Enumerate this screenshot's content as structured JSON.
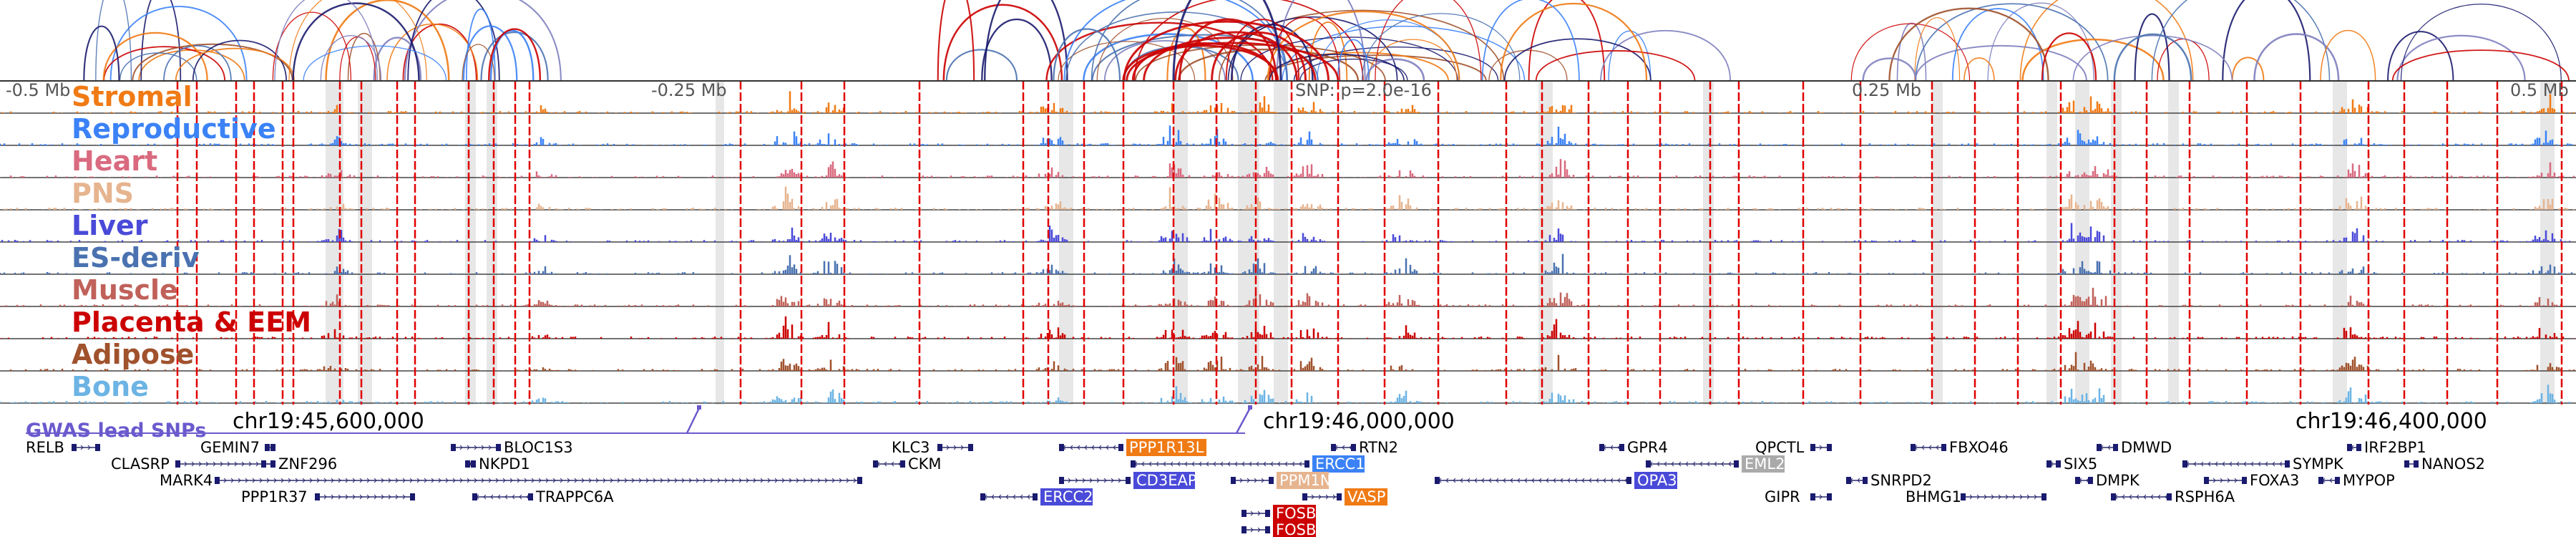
{
  "scale": {
    "left": "-0.5 Mb",
    "mid_left": "-0.25 Mb",
    "center": "SNP: p=2.0e-16",
    "mid_right": "0.25 Mb",
    "right": "0.5 Mb"
  },
  "tracks": [
    {
      "name": "Stromal",
      "color": "#f07a14"
    },
    {
      "name": "Reproductive",
      "color": "#3b82f6"
    },
    {
      "name": "Heart",
      "color": "#d96a7f"
    },
    {
      "name": "PNS",
      "color": "#e6b48f"
    },
    {
      "name": "Liver",
      "color": "#4a4ad9"
    },
    {
      "name": "ES-deriv",
      "color": "#4a72b0"
    },
    {
      "name": "Muscle",
      "color": "#c0615a"
    },
    {
      "name": "Placenta & EEM",
      "color": "#cc0000"
    },
    {
      "name": "Adipose",
      "color": "#a0522d"
    },
    {
      "name": "Bone",
      "color": "#6cb4e4"
    }
  ],
  "coords": [
    "chr19:45,600,000",
    "chr19:46,000,000",
    "chr19:46,400,000"
  ],
  "gwas_label": "GWAS lead SNPs",
  "genes": [
    {
      "name": "RELB",
      "strand": "+"
    },
    {
      "name": "CLASRP",
      "strand": "+"
    },
    {
      "name": "GEMIN7",
      "strand": "+"
    },
    {
      "name": "ZNF296",
      "strand": "+"
    },
    {
      "name": "MARK4",
      "strand": "+"
    },
    {
      "name": "PPP1R37",
      "strand": "+"
    },
    {
      "name": "BLOC1S3",
      "strand": "+"
    },
    {
      "name": "NKPD1",
      "strand": "-"
    },
    {
      "name": "TRAPPC6A",
      "strand": "-"
    },
    {
      "name": "KLC3",
      "strand": "+"
    },
    {
      "name": "CKM",
      "strand": "-"
    },
    {
      "name": "PPP1R13L",
      "strand": "-"
    },
    {
      "name": "ERCC1",
      "strand": "-"
    },
    {
      "name": "CD3EAP",
      "strand": "+"
    },
    {
      "name": "ERCC2",
      "strand": "-"
    },
    {
      "name": "PPM1N",
      "strand": "+"
    },
    {
      "name": "RTN2",
      "strand": "-"
    },
    {
      "name": "VASP",
      "strand": "+"
    },
    {
      "name": "FOSB",
      "strand": "+"
    },
    {
      "name": "FOSB",
      "strand": "+"
    },
    {
      "name": "OPA3",
      "strand": "-"
    },
    {
      "name": "GPR4",
      "strand": "-"
    },
    {
      "name": "EML2",
      "strand": "-"
    },
    {
      "name": "GIPR",
      "strand": "+"
    },
    {
      "name": "QPCTL",
      "strand": "+"
    },
    {
      "name": "SNRPD2",
      "strand": "-"
    },
    {
      "name": "FBXO46",
      "strand": "-"
    },
    {
      "name": "BHMG1",
      "strand": "+"
    },
    {
      "name": "SIX5",
      "strand": "-"
    },
    {
      "name": "DMWD",
      "strand": "-"
    },
    {
      "name": "DMPK",
      "strand": "-"
    },
    {
      "name": "RSPH6A",
      "strand": "-"
    },
    {
      "name": "SYMPK",
      "strand": "-"
    },
    {
      "name": "FOXA3",
      "strand": "+"
    },
    {
      "name": "IRF2BP1",
      "strand": "-"
    },
    {
      "name": "MYPOP",
      "strand": "-"
    },
    {
      "name": "NANOS2",
      "strand": "+"
    }
  ]
}
